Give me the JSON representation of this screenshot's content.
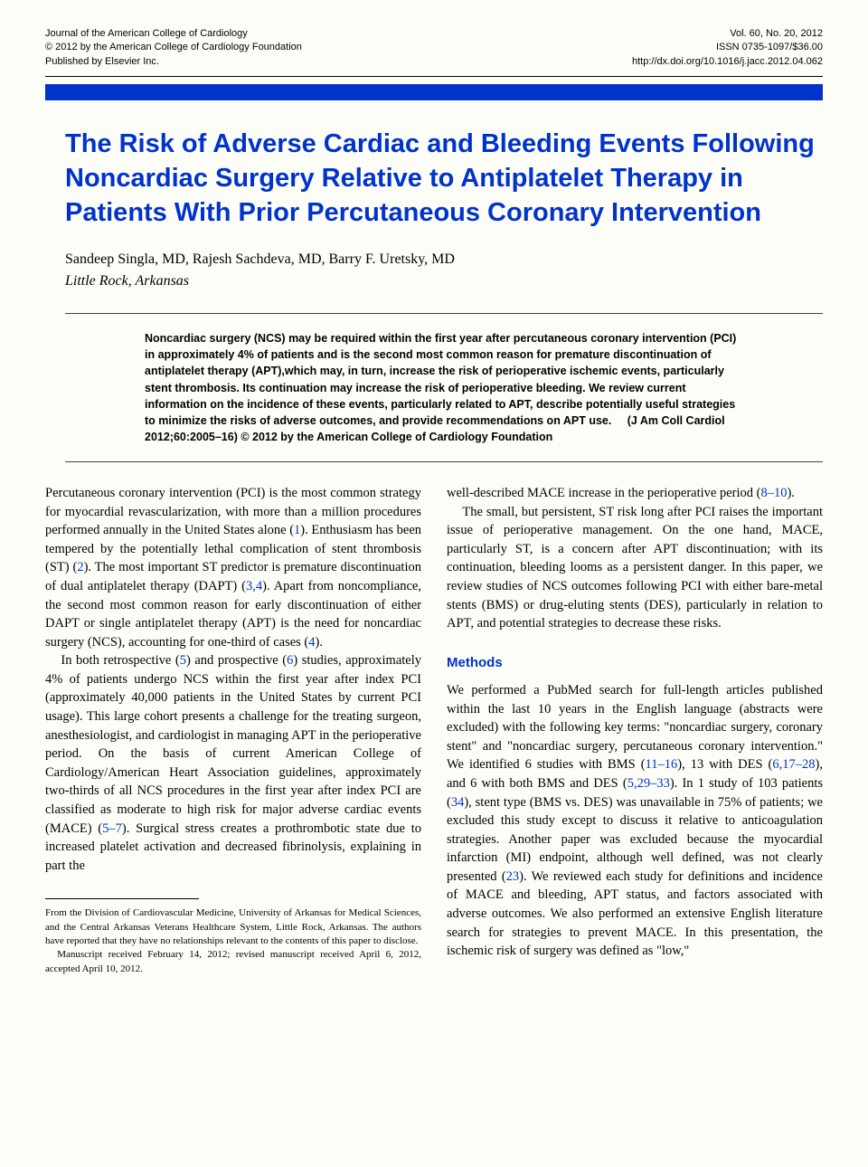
{
  "header": {
    "left_line1": "Journal of the American College of Cardiology",
    "left_line2": "© 2012 by the American College of Cardiology Foundation",
    "left_line3": "Published by Elsevier Inc.",
    "right_line1": "Vol. 60, No. 20, 2012",
    "right_line2": "ISSN 0735-1097/$36.00",
    "right_line3": "http://dx.doi.org/10.1016/j.jacc.2012.04.062"
  },
  "colors": {
    "accent_blue": "#0033cc",
    "background": "#fefef8",
    "text": "#000000"
  },
  "title": "The Risk of Adverse Cardiac and Bleeding Events Following Noncardiac Surgery Relative to Antiplatelet Therapy in Patients With Prior Percutaneous Coronary Intervention",
  "authors": "Sandeep Singla, MD, Rajesh Sachdeva, MD, Barry F. Uretsky, MD",
  "location": "Little Rock, Arkansas",
  "abstract": {
    "text": "Noncardiac surgery (NCS) may be required within the first year after percutaneous coronary intervention (PCI) in approximately 4% of patients and is the second most common reason for premature discontinuation of antiplatelet therapy (APT),which may, in turn, increase the risk of perioperative ischemic events, particularly stent thrombosis. Its continuation may increase the risk of perioperative bleeding. We review current information on the incidence of these events, particularly related to APT, describe potentially useful strategies to minimize the risks of adverse outcomes, and provide recommendations on APT use.",
    "citation": "(J Am Coll Cardiol 2012;60:2005–16) © 2012 by the American College of Cardiology Foundation"
  },
  "body": {
    "col1": {
      "p1_a": "Percutaneous coronary intervention (PCI) is the most common strategy for myocardial revascularization, with more than a million procedures performed annually in the United States alone (",
      "p1_ref1": "1",
      "p1_b": "). Enthusiasm has been tempered by the potentially lethal complication of stent thrombosis (ST) (",
      "p1_ref2": "2",
      "p1_c": "). The most important ST predictor is premature discontinuation of dual antiplatelet therapy (DAPT) (",
      "p1_ref3": "3,4",
      "p1_d": "). Apart from noncompliance, the second most common reason for early discontinuation of either DAPT or single antiplatelet therapy (APT) is the need for noncardiac surgery (NCS), accounting for one-third of cases (",
      "p1_ref4": "4",
      "p1_e": ").",
      "p2_a": "In both retrospective (",
      "p2_ref1": "5",
      "p2_b": ") and prospective (",
      "p2_ref2": "6",
      "p2_c": ") studies, approximately 4% of patients undergo NCS within the first year after index PCI (approximately 40,000 patients in the United States by current PCI usage). This large cohort presents a challenge for the treating surgeon, anesthesiologist, and cardiologist in managing APT in the perioperative period. On the basis of current American College of Cardiology/American Heart Association guidelines, approximately two-thirds of all NCS procedures in the first year after index PCI are classified as moderate to high risk for major adverse cardiac events (MACE) (",
      "p2_ref3": "5–7",
      "p2_d": "). Surgical stress creates a prothrombotic state due to increased platelet activation and decreased fibrinolysis, explaining in part the"
    },
    "col2": {
      "p1_a": "well-described MACE increase in the perioperative period (",
      "p1_ref1": "8–10",
      "p1_b": ").",
      "p2": "The small, but persistent, ST risk long after PCI raises the important issue of perioperative management. On the one hand, MACE, particularly ST, is a concern after APT discontinuation; with its continuation, bleeding looms as a persistent danger. In this paper, we review studies of NCS outcomes following PCI with either bare-metal stents (BMS) or drug-eluting stents (DES), particularly in relation to APT, and potential strategies to decrease these risks.",
      "methods_heading": "Methods",
      "p3_a": "We performed a PubMed search for full-length articles published within the last 10 years in the English language (abstracts were excluded) with the following key terms: \"noncardiac surgery, coronary stent\" and \"noncardiac surgery, percutaneous coronary intervention.\" We identified 6 studies with BMS (",
      "p3_ref1": "11–16",
      "p3_b": "), 13 with DES (",
      "p3_ref2": "6,17–28",
      "p3_c": "), and 6 with both BMS and DES (",
      "p3_ref3": "5,29–33",
      "p3_d": "). In 1 study of 103 patients (",
      "p3_ref4": "34",
      "p3_e": "), stent type (BMS vs. DES) was unavailable in 75% of patients; we excluded this study except to discuss it relative to anticoagulation strategies. Another paper was excluded because the myocardial infarction (MI) endpoint, although well defined, was not clearly presented (",
      "p3_ref5": "23",
      "p3_f": "). We reviewed each study for definitions and incidence of MACE and bleeding, APT status, and factors associated with adverse outcomes. We also performed an extensive English literature search for strategies to prevent MACE. In this presentation, the ischemic risk of surgery was defined as \"low,\""
    }
  },
  "footnote": {
    "p1": "From the Division of Cardiovascular Medicine, University of Arkansas for Medical Sciences, and the Central Arkansas Veterans Healthcare System, Little Rock, Arkansas. The authors have reported that they have no relationships relevant to the contents of this paper to disclose.",
    "p2": "Manuscript received February 14, 2012; revised manuscript received April 6, 2012, accepted April 10, 2012."
  }
}
